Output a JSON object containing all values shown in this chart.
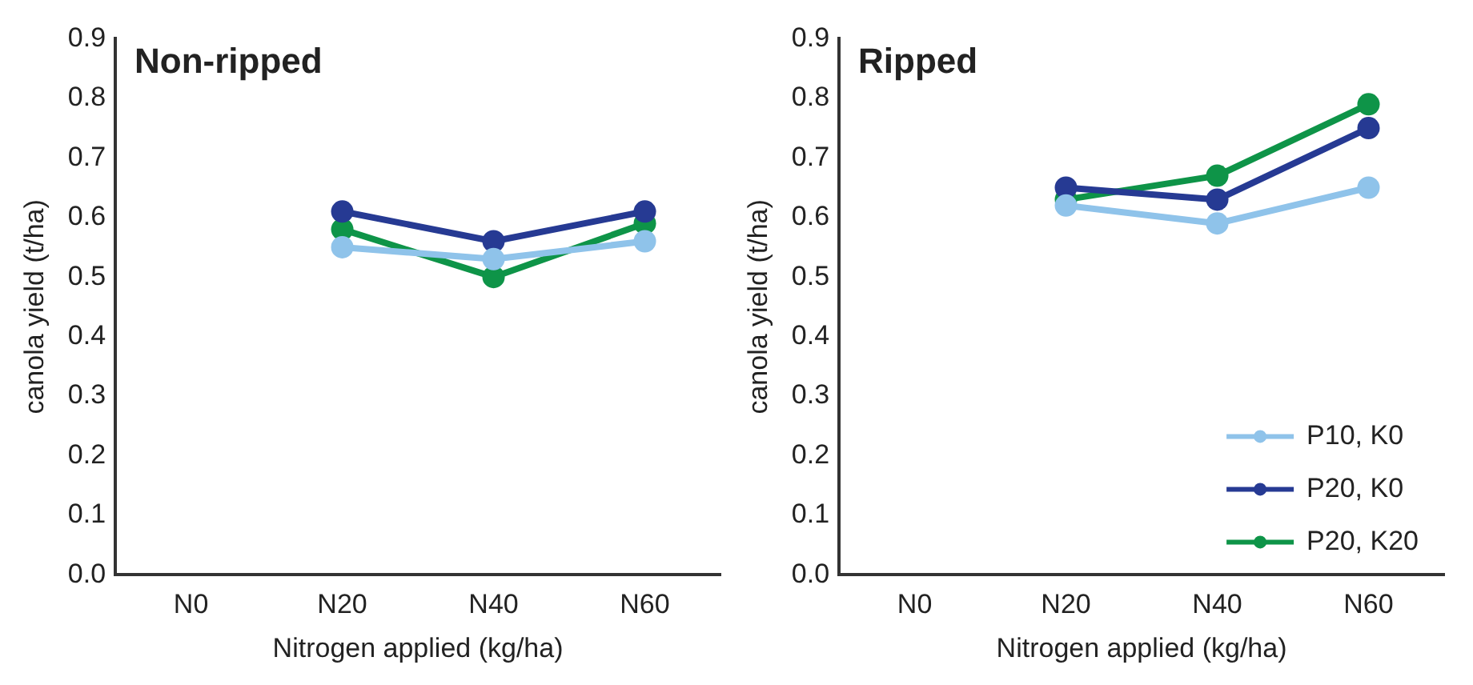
{
  "chart_data": [
    {
      "type": "line",
      "title": "Non-ripped",
      "xlabel": "Nitrogen applied (kg/ha)",
      "ylabel": "canola yield (t/ha)",
      "categories": [
        "N0",
        "N20",
        "N40",
        "N60"
      ],
      "ylim": [
        0,
        0.9
      ],
      "yticks": [
        {
          "value": 0,
          "label": "0.0"
        },
        0.1,
        0.2,
        0.3,
        0.4,
        0.5,
        0.6,
        0.7,
        0.8,
        0.9
      ],
      "grid": false,
      "legend": false,
      "marker": "circle",
      "line_style": "solid",
      "series": [
        {
          "color": "#8fc3ea",
          "values": [
            null,
            0.55,
            0.53,
            0.56
          ]
        },
        {
          "color": "#263a93",
          "values": [
            null,
            0.61,
            0.56,
            0.61
          ]
        },
        {
          "color": "#0e9448",
          "values": [
            null,
            0.58,
            0.5,
            0.59
          ]
        }
      ]
    },
    {
      "type": "line",
      "title": "Ripped",
      "xlabel": "Nitrogen applied (kg/ha)",
      "ylabel": "canola yield (t/ha)",
      "categories": [
        "N0",
        "N20",
        "N40",
        "N60"
      ],
      "ylim": [
        0,
        0.9
      ],
      "yticks": [
        {
          "value": 0,
          "label": "0.0"
        },
        0.1,
        0.2,
        0.3,
        0.4,
        0.5,
        0.6,
        0.7,
        0.8,
        0.9
      ],
      "grid": false,
      "legend": "bottom right",
      "marker": "circle",
      "line_style": "solid",
      "series": [
        {
          "name": "P10, K0",
          "color": "#8fc3ea",
          "values": [
            null,
            0.62,
            0.59,
            0.65
          ]
        },
        {
          "name": "P20, K0",
          "color": "#263a93",
          "values": [
            null,
            0.65,
            0.63,
            0.75
          ]
        },
        {
          "name": "P20, K20",
          "color": "#0e9448",
          "values": [
            null,
            0.63,
            0.67,
            0.79
          ]
        }
      ]
    }
  ]
}
